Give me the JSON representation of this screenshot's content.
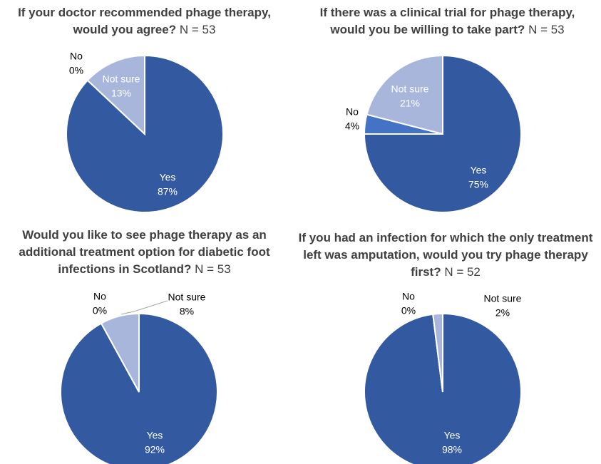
{
  "chart_data": [
    {
      "type": "pie",
      "title": "If your doctor recommended phage therapy, would you agree?",
      "sample_size": "N = 53",
      "categories": [
        "Yes",
        "No",
        "Not sure"
      ],
      "values": [
        87,
        0,
        13
      ],
      "value_labels": [
        "87%",
        "0%",
        "13%"
      ],
      "colors": [
        "#335aa0",
        "#4472c4",
        "#a9b6dc"
      ]
    },
    {
      "type": "pie",
      "title": "If there was a clinical trial for phage therapy, would you be willing to take part?",
      "sample_size": "N = 53",
      "categories": [
        "Yes",
        "No",
        "Not sure"
      ],
      "values": [
        75,
        4,
        21
      ],
      "value_labels": [
        "75%",
        "4%",
        "21%"
      ],
      "colors": [
        "#335aa0",
        "#4472c4",
        "#a9b6dc"
      ]
    },
    {
      "type": "pie",
      "title": "Would you like to see phage therapy as an additional treatment option for diabetic foot infections in Scotland?",
      "sample_size": "N = 53",
      "categories": [
        "Yes",
        "No",
        "Not sure"
      ],
      "values": [
        92,
        0,
        8
      ],
      "value_labels": [
        "92%",
        "0%",
        "8%"
      ],
      "colors": [
        "#335aa0",
        "#4472c4",
        "#a9b6dc"
      ]
    },
    {
      "type": "pie",
      "title": "If you had an infection for which the only treatment left was amputation, would you try phage therapy first?",
      "sample_size": "N = 52",
      "categories": [
        "Yes",
        "No",
        "Not sure"
      ],
      "values": [
        98,
        0,
        2
      ],
      "value_labels": [
        "98%",
        "0%",
        "2%"
      ],
      "colors": [
        "#335aa0",
        "#4472c4",
        "#a9b6dc"
      ]
    }
  ]
}
